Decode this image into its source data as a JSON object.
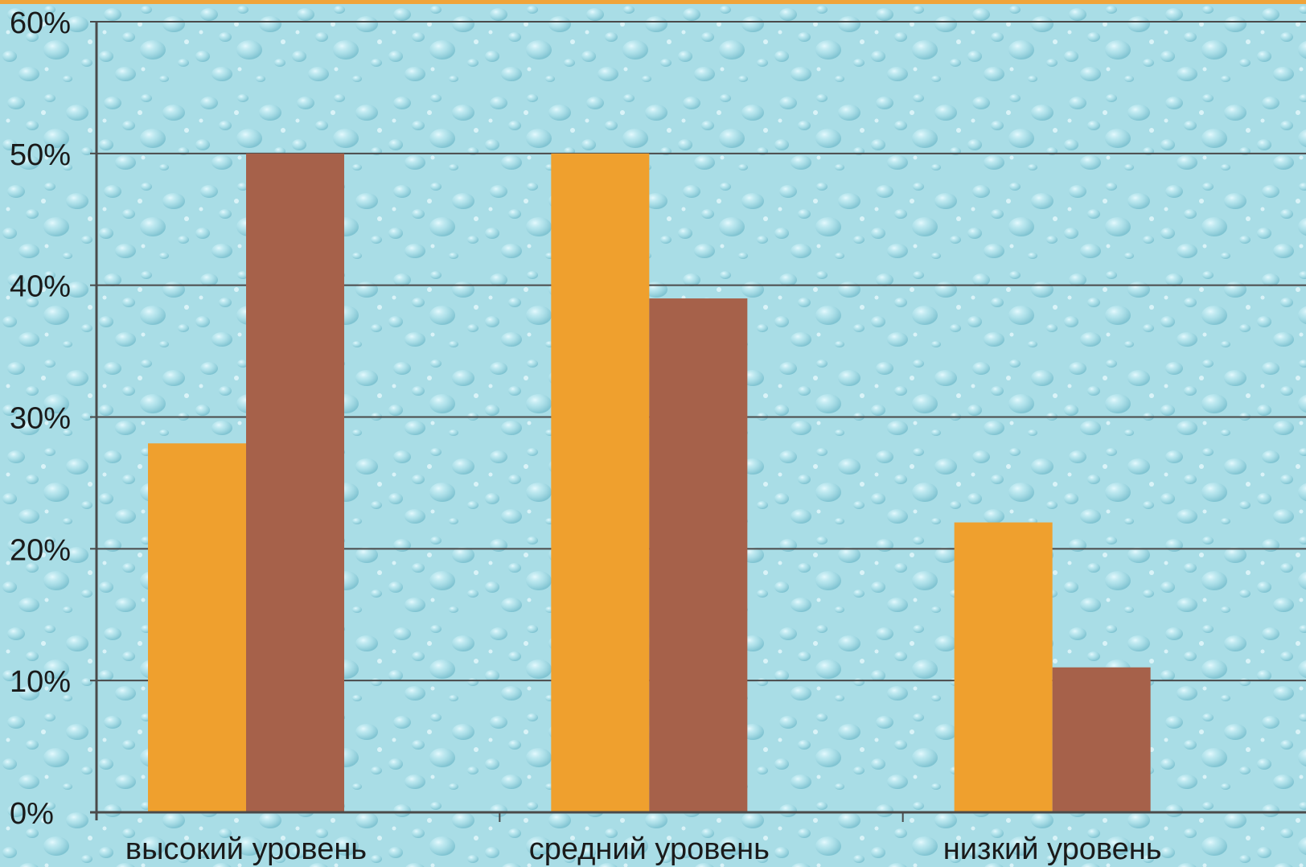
{
  "chart_data": {
    "type": "bar",
    "categories": [
      "высокий уровень",
      "средний уровень",
      "низкий уровень"
    ],
    "series": [
      {
        "values": [
          28,
          50,
          22
        ],
        "color": "#efa02e"
      },
      {
        "values": [
          50,
          39,
          11
        ],
        "color": "#a6614a"
      }
    ],
    "ylim": [
      0,
      60
    ],
    "yticks": [
      0,
      10,
      20,
      30,
      40,
      50,
      60
    ],
    "ytick_labels": [
      "0%",
      "10%",
      "20%",
      "30%",
      "40%",
      "50%",
      "60%"
    ],
    "grid": true,
    "legend": "none",
    "background_color": "#a9dde6",
    "border_color": "#f0a43a",
    "axis_color": "#4a4a4a",
    "text_color": "#1a1a1a"
  }
}
